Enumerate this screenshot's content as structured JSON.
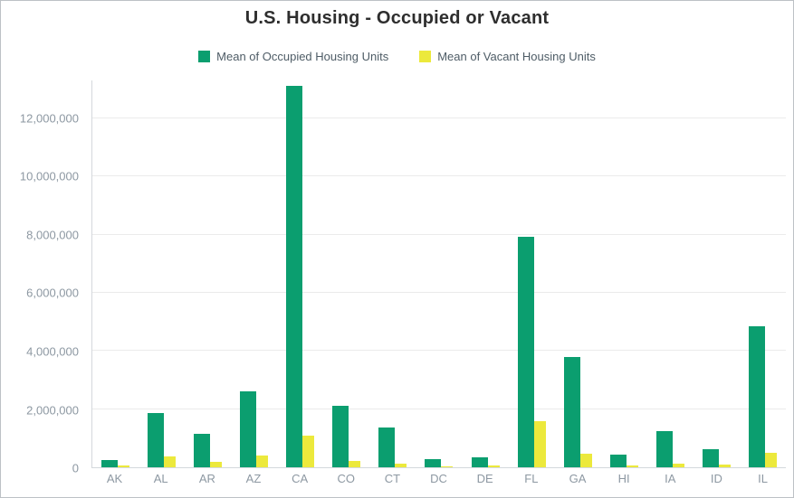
{
  "chart_data": {
    "type": "bar",
    "title": "U.S. Housing - Occupied or Vacant",
    "categories": [
      "AK",
      "AL",
      "AR",
      "AZ",
      "CA",
      "CO",
      "CT",
      "DC",
      "DE",
      "FL",
      "GA",
      "HI",
      "IA",
      "ID",
      "IL"
    ],
    "series": [
      {
        "name": "Mean of Occupied Housing Units",
        "color": "#0b9e6f",
        "values": [
          240000,
          1850000,
          1150000,
          2600000,
          13100000,
          2100000,
          1370000,
          270000,
          350000,
          7930000,
          3800000,
          450000,
          1250000,
          620000,
          4850000
        ]
      },
      {
        "name": "Mean of Vacant Housing Units",
        "color": "#ece93c",
        "values": [
          60000,
          380000,
          200000,
          390000,
          1100000,
          220000,
          110000,
          40000,
          60000,
          1600000,
          480000,
          70000,
          120000,
          80000,
          490000
        ]
      }
    ],
    "ylim": [
      0,
      13300000
    ],
    "yticks": [
      0,
      2000000,
      4000000,
      6000000,
      8000000,
      10000000,
      12000000
    ],
    "grid": true,
    "legend_position": "top"
  }
}
